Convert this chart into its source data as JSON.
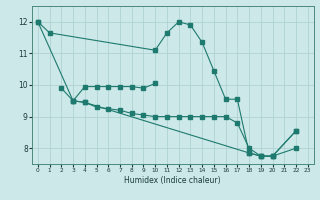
{
  "xlabel": "Humidex (Indice chaleur)",
  "xlim": [
    -0.5,
    23.5
  ],
  "ylim": [
    7.5,
    12.5
  ],
  "yticks": [
    8,
    9,
    10,
    11,
    12
  ],
  "xticks": [
    0,
    1,
    2,
    3,
    4,
    5,
    6,
    7,
    8,
    9,
    10,
    11,
    12,
    13,
    14,
    15,
    16,
    17,
    18,
    19,
    20,
    21,
    22,
    23
  ],
  "bg_color": "#cce8e8",
  "line_color": "#1e7a6e",
  "grid_color": "#aacece",
  "line1_x": [
    0,
    1,
    10,
    11,
    12,
    13,
    14,
    15,
    16,
    17,
    18,
    19,
    20,
    22
  ],
  "line1_y": [
    12.0,
    11.65,
    11.1,
    11.65,
    12.0,
    11.9,
    11.35,
    10.45,
    9.55,
    9.55,
    7.85,
    7.75,
    7.75,
    8.0
  ],
  "line2_x": [
    0,
    3,
    4,
    18,
    19,
    20,
    22
  ],
  "line2_y": [
    12.0,
    9.5,
    9.45,
    7.85,
    7.75,
    7.75,
    8.55
  ],
  "line3_x": [
    2,
    3,
    4,
    5,
    6,
    7,
    8,
    9,
    10,
    11,
    12,
    13,
    14,
    15,
    16,
    17,
    18,
    19,
    20,
    22
  ],
  "line3_y": [
    9.9,
    9.5,
    9.45,
    9.3,
    9.25,
    9.2,
    9.1,
    9.05,
    9.0,
    9.0,
    9.0,
    9.0,
    9.0,
    9.0,
    9.0,
    8.8,
    8.0,
    7.75,
    7.75,
    8.55
  ],
  "line4_x": [
    3,
    4,
    5,
    6,
    7,
    8,
    9,
    10
  ],
  "line4_y": [
    9.5,
    9.95,
    9.95,
    9.95,
    9.95,
    9.95,
    9.9,
    10.05
  ]
}
